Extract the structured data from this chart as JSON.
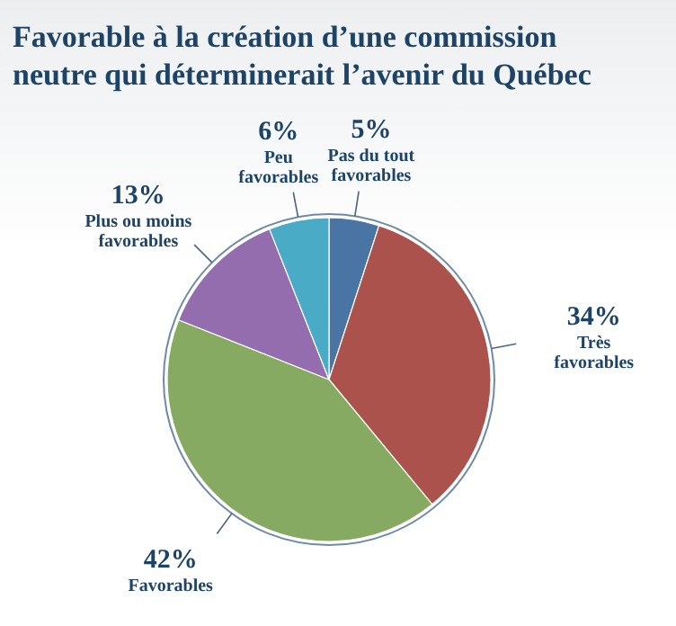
{
  "chart_data": {
    "type": "pie",
    "title": "Favorable à la création d’une commission neutre qui déterminerait l’avenir du Québec",
    "categories": [
      "Pas du tout favorables",
      "Très favorables",
      "Favorables",
      "Plus ou moins favorables",
      "Peu favorables"
    ],
    "values": [
      5,
      34,
      42,
      13,
      6
    ],
    "colors": [
      "#4a74a3",
      "#ab524c",
      "#87aa62",
      "#946daf",
      "#4aabc6"
    ],
    "value_labels": [
      "5%",
      "34%",
      "42%",
      "13%",
      "6%"
    ]
  }
}
